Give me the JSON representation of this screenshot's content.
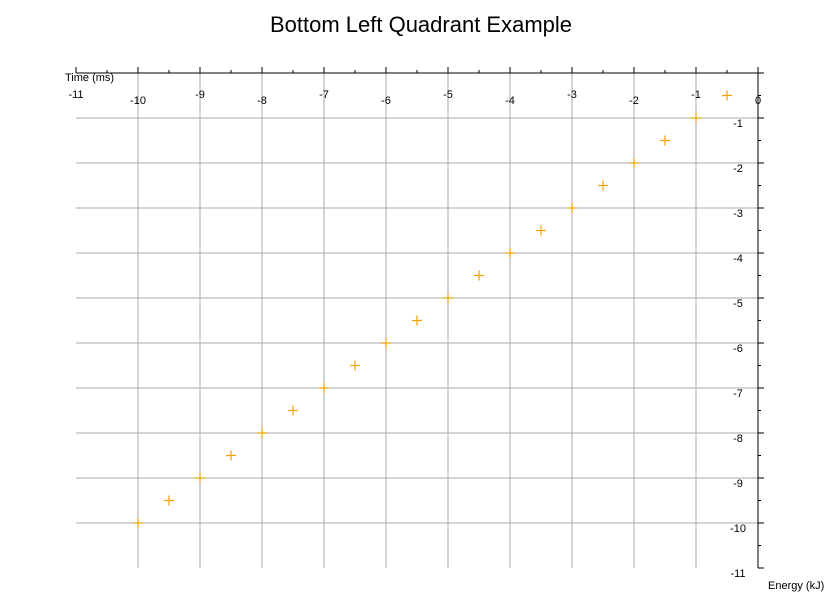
{
  "chart_data": {
    "type": "scatter",
    "title": "Bottom Left Quadrant Example",
    "xlabel": "Energy (kJ)",
    "ylabel": "Time (ms)",
    "xlim": [
      -11,
      0
    ],
    "ylim": [
      -11,
      0
    ],
    "x_ticks": [
      -11,
      -10,
      -9,
      -8,
      -7,
      -6,
      -5,
      -4,
      -3,
      -2,
      -1,
      0
    ],
    "y_ticks": [
      -1,
      -2,
      -3,
      -4,
      -5,
      -6,
      -7,
      -8,
      -9,
      -10,
      -11
    ],
    "grid": true,
    "marker": "plus",
    "marker_color": "#f5a000",
    "points": [
      {
        "x": -10,
        "y": -10
      },
      {
        "x": -9.5,
        "y": -9.5
      },
      {
        "x": -9,
        "y": -9
      },
      {
        "x": -8.5,
        "y": -8.5
      },
      {
        "x": -8,
        "y": -8
      },
      {
        "x": -7.5,
        "y": -7.5
      },
      {
        "x": -7,
        "y": -7
      },
      {
        "x": -6.5,
        "y": -6.5
      },
      {
        "x": -6,
        "y": -6
      },
      {
        "x": -5.5,
        "y": -5.5
      },
      {
        "x": -5,
        "y": -5
      },
      {
        "x": -4.5,
        "y": -4.5
      },
      {
        "x": -4,
        "y": -4
      },
      {
        "x": -3.5,
        "y": -3.5
      },
      {
        "x": -3,
        "y": -3
      },
      {
        "x": -2.5,
        "y": -2.5
      },
      {
        "x": -2,
        "y": -2
      },
      {
        "x": -1.5,
        "y": -1.5
      },
      {
        "x": -1,
        "y": -1
      },
      {
        "x": -0.5,
        "y": -0.5
      }
    ]
  }
}
